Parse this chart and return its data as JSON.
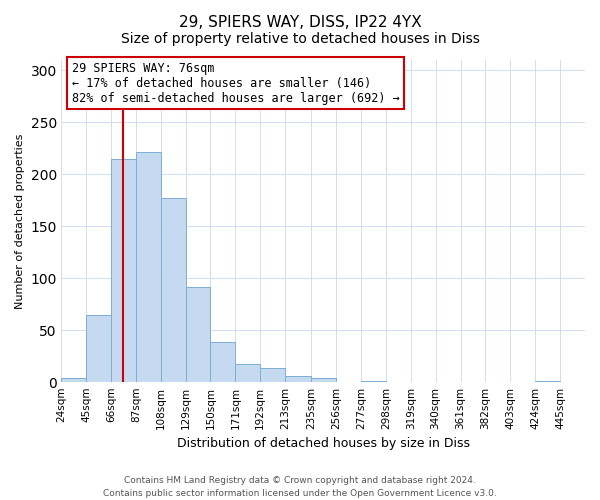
{
  "title": "29, SPIERS WAY, DISS, IP22 4YX",
  "subtitle": "Size of property relative to detached houses in Diss",
  "xlabel": "Distribution of detached houses by size in Diss",
  "ylabel": "Number of detached properties",
  "bin_labels": [
    "24sqm",
    "45sqm",
    "66sqm",
    "87sqm",
    "108sqm",
    "129sqm",
    "150sqm",
    "171sqm",
    "192sqm",
    "213sqm",
    "235sqm",
    "256sqm",
    "277sqm",
    "298sqm",
    "319sqm",
    "340sqm",
    "361sqm",
    "382sqm",
    "403sqm",
    "424sqm",
    "445sqm"
  ],
  "bar_values": [
    4,
    65,
    215,
    222,
    177,
    92,
    39,
    18,
    14,
    6,
    4,
    0,
    1,
    0,
    0,
    0,
    0,
    0,
    0,
    1,
    0
  ],
  "bar_color": "#c5d9f0",
  "bar_edge_color": "#7bafd4",
  "vline_x": 76,
  "bin_edges": [
    24,
    45,
    66,
    87,
    108,
    129,
    150,
    171,
    192,
    213,
    235,
    256,
    277,
    298,
    319,
    340,
    361,
    382,
    403,
    424,
    445
  ],
  "annotation_title": "29 SPIERS WAY: 76sqm",
  "annotation_line1": "← 17% of detached houses are smaller (146)",
  "annotation_line2": "82% of semi-detached houses are larger (692) →",
  "annotation_box_color": "#ffffff",
  "annotation_box_edge": "#cc0000",
  "ylim": [
    0,
    310
  ],
  "xlim_extra": 21,
  "footer1": "Contains HM Land Registry data © Crown copyright and database right 2024.",
  "footer2": "Contains public sector information licensed under the Open Government Licence v3.0.",
  "title_fontsize": 11,
  "subtitle_fontsize": 10,
  "ylabel_fontsize": 8,
  "xlabel_fontsize": 9,
  "tick_fontsize": 7.5,
  "footer_fontsize": 6.5,
  "ann_fontsize": 8.5
}
